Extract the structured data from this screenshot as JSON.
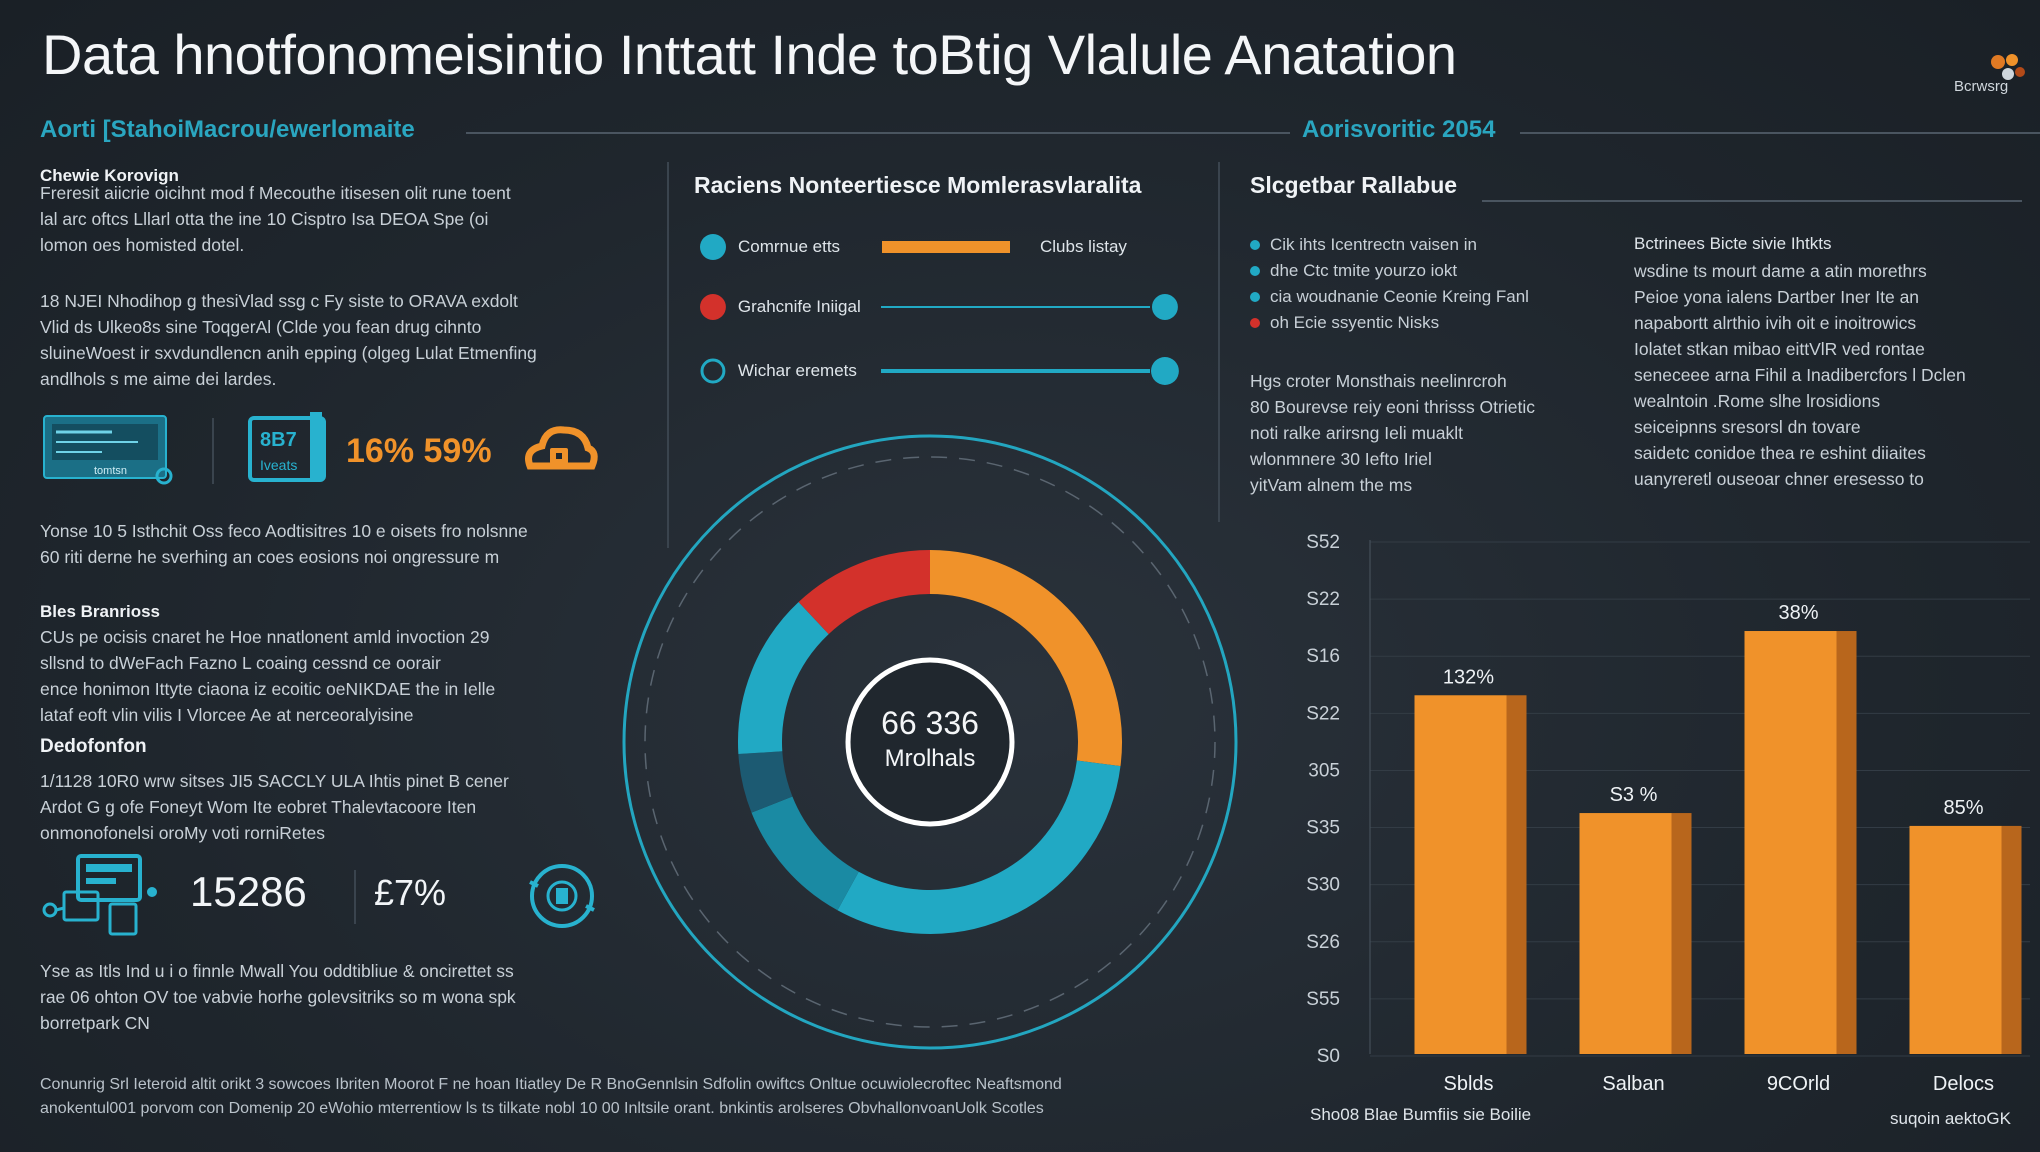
{
  "header": {
    "title": "Data hnotfonomeisintio Inttatt Inde toBtig Vlalule Anatation",
    "subtitle_left": "Aorti [StahoiMacrou/ewerlomaite",
    "subtitle_right": "Aorisvoritic 2054",
    "logo_text": "Bcrwsrg"
  },
  "left": {
    "heading1": "Chewie Korovign",
    "para1": [
      "Freresit aiicrie oicihnt mod f Mecouthe itisesen olit rune toent",
      "lal arc oftcs Lllarl otta the ine 10 Cisptro Isa DEOA Spe (oi",
      "lomon oes homisted dotel."
    ],
    "para2": [
      "18 NJEI Nhodihop g thesiVlad ssg c Fy siste to ORAVA exdolt",
      "Vlid ds Ulkeo8s sine ToqgerAl (Clde you fean drug cihnto",
      "sluineWoest ir sxvdundlencn anih epping (olgeg Lulat Etmenfing",
      "andlhols s me aime dei lardes."
    ],
    "stat1": "16% 59%",
    "tile_text": "tomtsn",
    "device_text_top": "8B7",
    "device_text_bottom": "Iveats",
    "para3": [
      "Yonse 10 5 Isthchit Oss feco Aodtisitres 10 e oisets fro nolsnne",
      "60 riti derne he sverhing an coes eosions noi ongressure m"
    ],
    "heading2": "Bles Branrioss",
    "para4": [
      "CUs pe ocisis cnaret he Hoe nnatlonent amld invoction 29",
      "sllsnd to dWeFach Fazno L coaing cessnd ce oorair",
      "ence honimon Ittyte ciaona iz ecoitic oeNIKDAE the in Ielle",
      "lataf eoft vlin vilis I Vlorcee Ae at nerceoralyisine"
    ],
    "heading3": "Dedofonfon",
    "para5": [
      "1/1128 10R0 wrw sitses JI5 SACCLY ULA Ihtis pinet B cener",
      "Ardot G g ofe Foneyt Wom Ite eobret Thalevtacoore Iten",
      "onmonofonelsi oroMy voti rorniRetes"
    ],
    "stat2": "15286",
    "stat3": "£7%",
    "para6": [
      "Yse as Itls Ind u i o finnle Mwall You oddtibliue & oncirettet ss",
      "rae 06 ohton OV toe vabvie horhe golevsitriks so m wona spk",
      "borretpark CN"
    ]
  },
  "middle": {
    "title": "Raciens Nonteertiesce Momlerasvlaralita",
    "legend": [
      {
        "label": "Comrnue etts",
        "end_label": "Clubs listay",
        "color": "#21a9c4"
      },
      {
        "label": "Grahcnife Iniigal",
        "end_label": "",
        "color": "#d3312b"
      },
      {
        "label": "Wichar eremets",
        "end_label": "",
        "color": "#21a9c4"
      }
    ],
    "center_value": "66 336",
    "center_label": "Mrolhals"
  },
  "right": {
    "title": "Slcgetbar Rallabue",
    "bullets": [
      {
        "text": "Cik ihts Icentrectn vaisen in",
        "color": "#21a9c4"
      },
      {
        "text": "dhe Ctc tmite yourzo iokt",
        "color": "#21a9c4"
      },
      {
        "text": "cia woudnanie Ceonie Kreing Fanl",
        "color": "#21a9c4"
      },
      {
        "text": "oh Ecie ssyentic Nisks",
        "color": "#d3312b"
      }
    ],
    "bullets_para": [
      "Hgs croter Monsthais neelinrcroh",
      "80 Bourevse reiy eoni thrisss Otrietic",
      "noti ralke arirsng Ieli muaklt",
      "wlonmnere 30 Iefto Iriel",
      "yitVam alnem the ms"
    ],
    "sub_heading": "Bctrinees Bicte sivie Ihtkts",
    "sub_para": [
      "wsdine ts mourt dame a atin morethrs",
      "Peioe yona ialens Dartber Iner Ite an",
      "napabortt alrthio ivih oit e inoitrowics",
      "Iolatet stkan mibao eittVlR ved rontae",
      "seneceee arna Fihil a Inadibercfors l Dclen",
      "wealntoin .Rome slhe lrosidions",
      "seiceipnns sresorsl dn tovare",
      "saidetc conidoe thea re eshint diiaites",
      "uanyreretl ouseoar chner eresesso to"
    ]
  },
  "chart_data": [
    {
      "type": "pie",
      "style": "donut",
      "values": [
        27,
        31,
        11,
        5,
        14,
        12
      ],
      "colors": [
        "#f0922a",
        "#21a9c4",
        "#1a8aa3",
        "#1c5a72",
        "#21a9c4",
        "#d3312b"
      ],
      "center_value": "66 336",
      "center_label": "Mrolhals"
    },
    {
      "type": "bar",
      "categories": [
        "Sblds",
        "Salban",
        "9COrld",
        "Delocs"
      ],
      "values": [
        335,
        225,
        395,
        213
      ],
      "data_labels": [
        "132%",
        "S3 %",
        "38%",
        "85%"
      ],
      "y_tick_labels": [
        "S52",
        "S22",
        "S16",
        "S22",
        "305",
        "S35",
        "S30",
        "S26",
        "S55",
        "S0"
      ],
      "ylim": [
        0,
        480
      ],
      "bar_color": "#f0922a",
      "xlabel": "Sho08 Blae Bumfiis sie Boilie",
      "corner_note": "suqoin aektoGK"
    }
  ],
  "footer": {
    "line1": "Conunrig Srl Ieteroid altit orikt 3 sowcoes Ibriten Moorot F ne hoan Itiatley De R BnoGennlsin Sdfolin owiftcs Onltue ocuwiolecroftec Neaftsmond",
    "line2": "anokentul001 porvom con Domenip 20 eWohio mterrentiow ls ts tilkate nobl 10 00 Inltsile orant. bnkintis arolseres ObvhallonvoanUolk Scotles"
  }
}
